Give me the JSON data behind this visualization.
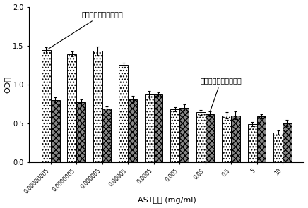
{
  "categories": [
    "0.00000005",
    "0.0000005",
    "0.000005",
    "0.00005",
    "0.0005",
    "0.005",
    "0.05",
    "0.5",
    "5",
    "10"
  ],
  "series1_values": [
    1.44,
    1.39,
    1.43,
    1.25,
    0.87,
    0.68,
    0.64,
    0.6,
    0.49,
    0.38
  ],
  "series1_errors": [
    0.04,
    0.03,
    0.06,
    0.03,
    0.05,
    0.03,
    0.03,
    0.04,
    0.03,
    0.03
  ],
  "series2_values": [
    0.8,
    0.77,
    0.69,
    0.81,
    0.87,
    0.7,
    0.62,
    0.6,
    0.59,
    0.5
  ],
  "series2_errors": [
    0.03,
    0.04,
    0.03,
    0.04,
    0.03,
    0.04,
    0.03,
    0.05,
    0.03,
    0.04
  ],
  "series1_label": "黄芗甲苷纯化后特异性",
  "series2_label": "黄芗甲苷纯化前特异性",
  "xlabel": "AST浓度 (mg/ml)",
  "ylabel": "OD値",
  "ylim": [
    0.0,
    2.0
  ],
  "yticks": [
    0.0,
    0.5,
    1.0,
    1.5,
    2.0
  ],
  "bar_width": 0.35,
  "figsize": [
    4.36,
    2.95
  ],
  "dpi": 100,
  "background_color": "#ffffff"
}
